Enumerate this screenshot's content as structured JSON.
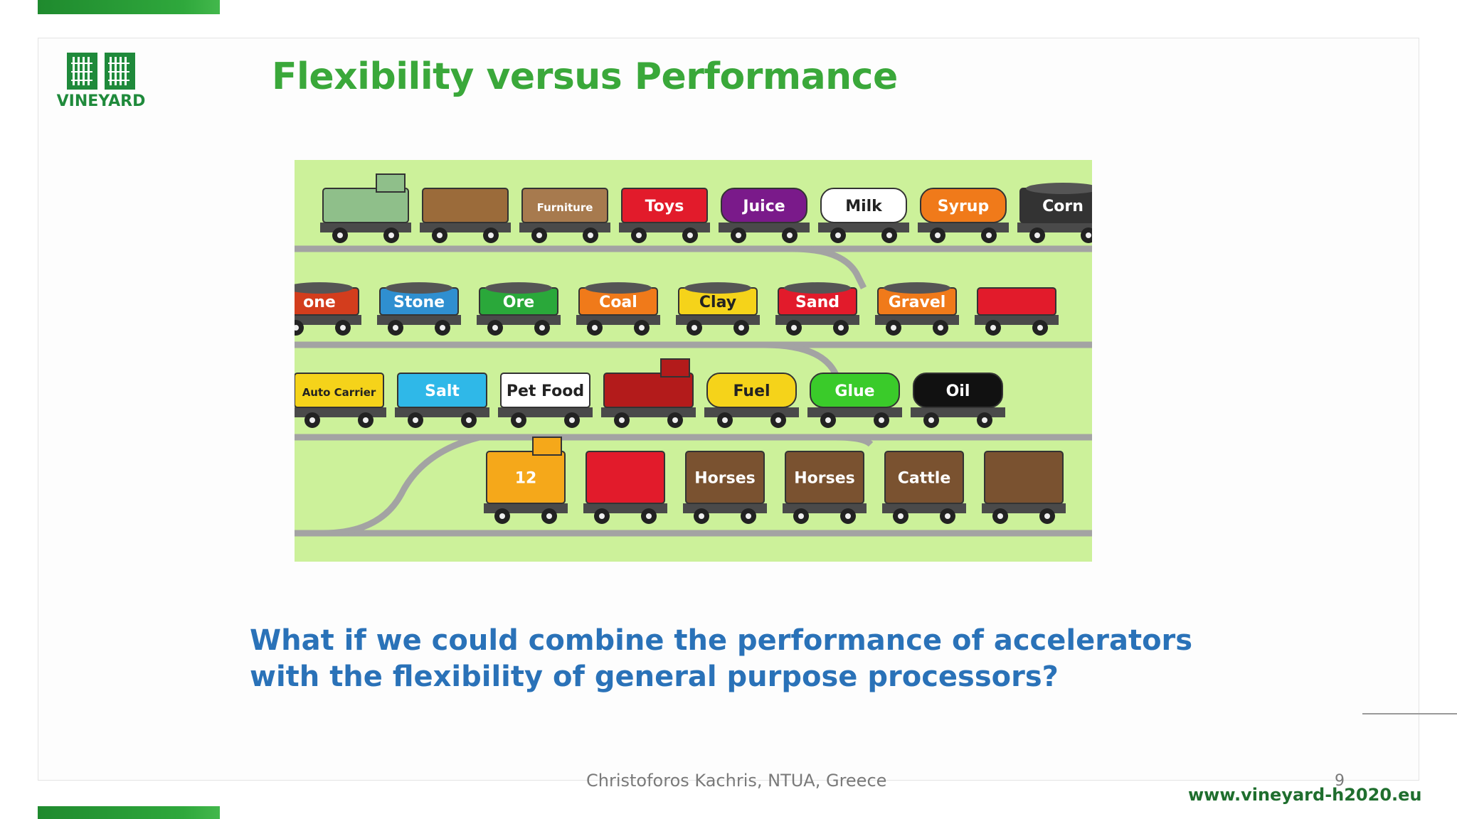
{
  "slide": {
    "title": "Flexibility versus Performance",
    "question_line1": "What if we could combine the performance of accelerators",
    "question_line2": "with the flexibility of general purpose processors?",
    "author": "Christoforos Kachris, NTUA, Greece",
    "page_number": "9",
    "url": "www.vineyard-h2020.eu"
  },
  "logo": {
    "text": "VINEYARD"
  },
  "colors": {
    "green": "#3aa83a",
    "blue": "#2a72b8",
    "dark_green": "#1f6e2e",
    "field": "#ccf19a"
  },
  "train_cars": {
    "row1": [
      {
        "label": "",
        "color": "#8fbf8a",
        "kind": "engine"
      },
      {
        "label": "",
        "color": "#9b6b3a",
        "kind": "logs"
      },
      {
        "label": "Furniture",
        "color": "#a77a4e",
        "kind": "box"
      },
      {
        "label": "Toys",
        "color": "#e21b2b",
        "kind": "box"
      },
      {
        "label": "Juice",
        "color": "#7a1a8a",
        "kind": "tank"
      },
      {
        "label": "Milk",
        "color": "#ffffff",
        "kind": "tank"
      },
      {
        "label": "Syrup",
        "color": "#f07a1a",
        "kind": "tank"
      },
      {
        "label": "Corn",
        "color": "#333333",
        "kind": "hopper"
      }
    ],
    "row2": [
      {
        "label": "one",
        "color": "#d33d1d",
        "kind": "gondola"
      },
      {
        "label": "Stone",
        "color": "#2f8fd0",
        "kind": "gondola"
      },
      {
        "label": "Ore",
        "color": "#2aa83a",
        "kind": "gondola"
      },
      {
        "label": "Coal",
        "color": "#f07a1a",
        "kind": "gondola"
      },
      {
        "label": "Clay",
        "color": "#f5d31a",
        "kind": "gondola"
      },
      {
        "label": "Sand",
        "color": "#e21b2b",
        "kind": "hopper"
      },
      {
        "label": "Gravel",
        "color": "#f07a1a",
        "kind": "hopper"
      },
      {
        "label": "",
        "color": "#e21b2b",
        "kind": "caboose"
      }
    ],
    "row3": [
      {
        "label": "Auto Carrier",
        "color": "#f5d31a",
        "kind": "carrier"
      },
      {
        "label": "Salt",
        "color": "#2fb8e8",
        "kind": "box"
      },
      {
        "label": "Pet Food",
        "color": "#ffffff",
        "kind": "box"
      },
      {
        "label": "",
        "color": "#b31b1b",
        "kind": "engine"
      },
      {
        "label": "Fuel",
        "color": "#f5d31a",
        "kind": "tank"
      },
      {
        "label": "Glue",
        "color": "#3acb2a",
        "kind": "tank"
      },
      {
        "label": "Oil",
        "color": "#111111",
        "kind": "tank"
      }
    ],
    "row4": [
      {
        "label": "12",
        "color": "#f5a81a",
        "kind": "engine"
      },
      {
        "label": "",
        "color": "#e21b2b",
        "kind": "flat"
      },
      {
        "label": "Horses",
        "color": "#7a5230",
        "kind": "stock"
      },
      {
        "label": "Horses",
        "color": "#7a5230",
        "kind": "stock"
      },
      {
        "label": "Cattle",
        "color": "#7a5230",
        "kind": "stock"
      },
      {
        "label": "",
        "color": "#7a5230",
        "kind": "stock"
      }
    ]
  }
}
